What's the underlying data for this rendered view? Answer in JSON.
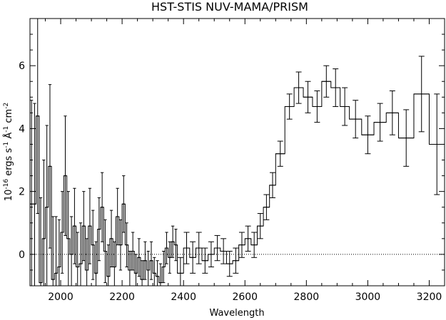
{
  "chart_data": {
    "type": "line",
    "style": "histogram-step-with-errorbars",
    "title": "HST-STIS   NUV-MAMA/PRISM",
    "xlabel": "Wavelength",
    "ylabel": {
      "prefix": "10",
      "exp": "-16",
      "text1": " ergs s",
      "exp2": "-1",
      "text2": " Å",
      "exp3": "-1",
      "text3": " cm",
      "exp4": "-2"
    },
    "xlim": [
      1900,
      3250
    ],
    "ylim": [
      -1,
      7.5
    ],
    "xticks": [
      2000,
      2200,
      2400,
      2600,
      2800,
      3000,
      3200
    ],
    "xtick_labels": [
      "2000",
      "2200",
      "2400",
      "2600",
      "2800",
      "3000",
      "3200"
    ],
    "yticks": [
      0,
      2,
      4,
      6
    ],
    "ytick_labels": [
      "0",
      "2",
      "4",
      "6"
    ],
    "zero_line": {
      "y": 0,
      "style": "dotted"
    },
    "series": [
      {
        "bins": [
          [
            1900,
            1910,
            1.6,
            3.3
          ],
          [
            1910,
            1920,
            1.6,
            3.2
          ],
          [
            1920,
            1930,
            4.4,
            3.1
          ],
          [
            1930,
            1940,
            -0.9,
            2.7
          ],
          [
            1940,
            1950,
            0.5,
            2.5
          ],
          [
            1950,
            1960,
            1.5,
            2.6
          ],
          [
            1960,
            1970,
            2.8,
            2.6
          ],
          [
            1970,
            1980,
            -0.8,
            2.0
          ],
          [
            1980,
            1990,
            -0.6,
            1.8
          ],
          [
            1990,
            2000,
            -0.4,
            1.5
          ],
          [
            2000,
            2010,
            0.7,
            1.3
          ],
          [
            2010,
            2020,
            2.5,
            1.9
          ],
          [
            2020,
            2030,
            0.5,
            1.5
          ],
          [
            2030,
            2040,
            0.0,
            1.2
          ],
          [
            2040,
            2050,
            0.9,
            1.2
          ],
          [
            2050,
            2060,
            -0.4,
            1.1
          ],
          [
            2060,
            2070,
            -0.3,
            1.3
          ],
          [
            2070,
            2080,
            0.9,
            1.1
          ],
          [
            2080,
            2090,
            -0.5,
            1.0
          ],
          [
            2090,
            2100,
            0.9,
            1.2
          ],
          [
            2100,
            2110,
            0.3,
            1.1
          ],
          [
            2110,
            2120,
            -0.6,
            1.0
          ],
          [
            2120,
            2130,
            0.8,
            1.0
          ],
          [
            2130,
            2140,
            1.5,
            1.1
          ],
          [
            2140,
            2150,
            0.1,
            1.0
          ],
          [
            2150,
            2160,
            -0.7,
            1.0
          ],
          [
            2160,
            2170,
            0.5,
            0.9
          ],
          [
            2170,
            2180,
            -0.4,
            0.8
          ],
          [
            2180,
            2190,
            1.2,
            0.9
          ],
          [
            2190,
            2200,
            0.3,
            0.8
          ],
          [
            2200,
            2210,
            1.6,
            0.9
          ],
          [
            2210,
            2220,
            0.3,
            0.7
          ],
          [
            2220,
            2230,
            -0.5,
            0.6
          ],
          [
            2230,
            2240,
            0.1,
            0.6
          ],
          [
            2240,
            2250,
            -0.6,
            0.6
          ],
          [
            2250,
            2260,
            -0.1,
            0.6
          ],
          [
            2260,
            2270,
            -0.8,
            0.6
          ],
          [
            2270,
            2280,
            -0.2,
            0.6
          ],
          [
            2280,
            2290,
            -0.5,
            0.6
          ],
          [
            2290,
            2300,
            -0.2,
            0.6
          ],
          [
            2300,
            2310,
            -0.6,
            0.5
          ],
          [
            2310,
            2320,
            -0.7,
            0.5
          ],
          [
            2320,
            2330,
            -0.9,
            0.6
          ],
          [
            2330,
            2340,
            -0.4,
            0.5
          ],
          [
            2340,
            2350,
            0.2,
            0.5
          ],
          [
            2350,
            2360,
            -0.1,
            0.5
          ],
          [
            2360,
            2370,
            0.4,
            0.5
          ],
          [
            2370,
            2380,
            0.3,
            0.5
          ],
          [
            2380,
            2400,
            -0.6,
            0.5
          ],
          [
            2400,
            2420,
            0.2,
            0.5
          ],
          [
            2420,
            2440,
            -0.1,
            0.5
          ],
          [
            2440,
            2460,
            0.2,
            0.5
          ],
          [
            2460,
            2480,
            -0.2,
            0.4
          ],
          [
            2480,
            2500,
            0.0,
            0.4
          ],
          [
            2500,
            2520,
            0.2,
            0.4
          ],
          [
            2520,
            2540,
            0.1,
            0.4
          ],
          [
            2540,
            2560,
            -0.3,
            0.4
          ],
          [
            2560,
            2580,
            -0.2,
            0.4
          ],
          [
            2580,
            2600,
            0.3,
            0.4
          ],
          [
            2600,
            2620,
            0.5,
            0.4
          ],
          [
            2620,
            2640,
            0.3,
            0.4
          ],
          [
            2640,
            2660,
            0.9,
            0.4
          ],
          [
            2660,
            2680,
            1.5,
            0.4
          ],
          [
            2680,
            2700,
            2.2,
            0.4
          ],
          [
            2700,
            2730,
            3.2,
            0.4
          ],
          [
            2730,
            2760,
            4.7,
            0.4
          ],
          [
            2760,
            2790,
            5.3,
            0.5
          ],
          [
            2790,
            2820,
            5.0,
            0.5
          ],
          [
            2820,
            2850,
            4.7,
            0.5
          ],
          [
            2850,
            2880,
            5.5,
            0.5
          ],
          [
            2880,
            2910,
            5.3,
            0.6
          ],
          [
            2910,
            2940,
            4.7,
            0.6
          ],
          [
            2940,
            2980,
            4.3,
            0.6
          ],
          [
            2980,
            3020,
            3.8,
            0.6
          ],
          [
            3020,
            3060,
            4.2,
            0.6
          ],
          [
            3060,
            3100,
            4.5,
            0.7
          ],
          [
            3100,
            3150,
            3.7,
            0.9
          ],
          [
            3150,
            3200,
            5.1,
            1.2
          ],
          [
            3200,
            3250,
            3.5,
            1.6
          ]
        ]
      }
    ]
  }
}
